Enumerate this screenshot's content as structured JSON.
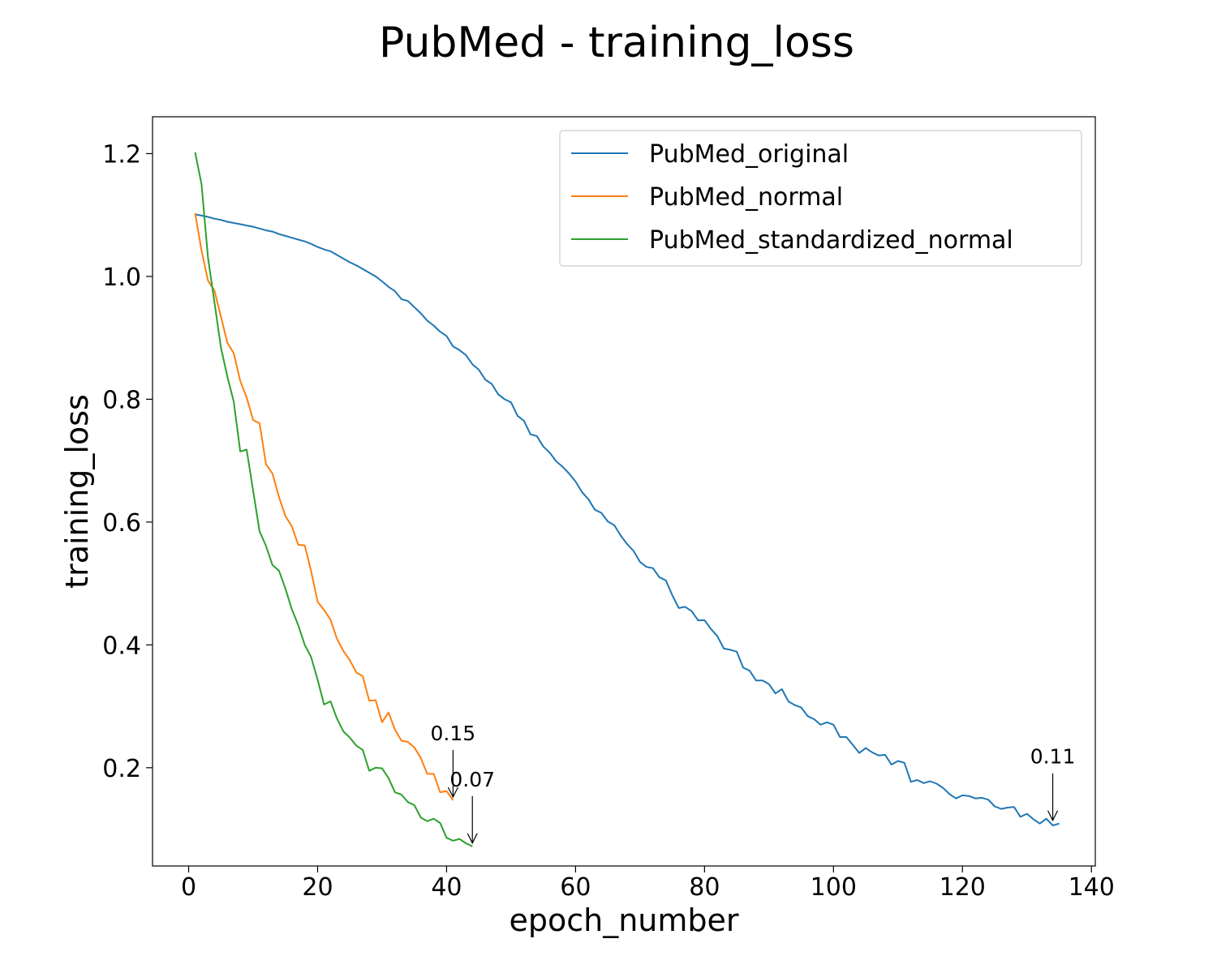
{
  "chart_data": {
    "type": "line",
    "title": "PubMed - training_loss",
    "xlabel": "epoch_number",
    "ylabel": "training_loss",
    "xlim": [
      -5.6,
      140.6
    ],
    "ylim": [
      0.04,
      1.26
    ],
    "xticks": [
      0,
      20,
      40,
      60,
      80,
      100,
      120,
      140
    ],
    "yticks": [
      0.2,
      0.4,
      0.6,
      0.8,
      1.0,
      1.2
    ],
    "xtick_labels": [
      "0",
      "20",
      "40",
      "60",
      "80",
      "100",
      "120",
      "140"
    ],
    "ytick_labels": [
      "0.2",
      "0.4",
      "0.6",
      "0.8",
      "1.0",
      "1.2"
    ],
    "grid": false,
    "legend_position": "top-right",
    "series": [
      {
        "name": "PubMed_original",
        "color": "#1f77b4",
        "x_start": 1,
        "values": [
          1.101,
          1.099,
          1.097,
          1.094,
          1.092,
          1.089,
          1.087,
          1.085,
          1.083,
          1.081,
          1.078,
          1.075,
          1.073,
          1.069,
          1.066,
          1.063,
          1.06,
          1.057,
          1.053,
          1.048,
          1.044,
          1.041,
          1.035,
          1.029,
          1.023,
          1.018,
          1.012,
          1.006,
          1.0,
          0.992,
          0.983,
          0.976,
          0.963,
          0.96,
          0.95,
          0.94,
          0.928,
          0.92,
          0.91,
          0.903,
          0.886,
          0.88,
          0.872,
          0.857,
          0.848,
          0.832,
          0.825,
          0.808,
          0.8,
          0.795,
          0.773,
          0.765,
          0.743,
          0.74,
          0.723,
          0.713,
          0.699,
          0.69,
          0.679,
          0.666,
          0.649,
          0.637,
          0.62,
          0.615,
          0.601,
          0.595,
          0.578,
          0.564,
          0.553,
          0.535,
          0.527,
          0.525,
          0.51,
          0.505,
          0.481,
          0.46,
          0.462,
          0.455,
          0.44,
          0.44,
          0.426,
          0.414,
          0.394,
          0.392,
          0.389,
          0.363,
          0.358,
          0.342,
          0.342,
          0.336,
          0.321,
          0.328,
          0.308,
          0.302,
          0.298,
          0.284,
          0.279,
          0.27,
          0.274,
          0.27,
          0.25,
          0.25,
          0.237,
          0.224,
          0.232,
          0.225,
          0.22,
          0.221,
          0.205,
          0.211,
          0.208,
          0.177,
          0.18,
          0.175,
          0.178,
          0.174,
          0.167,
          0.157,
          0.15,
          0.155,
          0.154,
          0.15,
          0.151,
          0.148,
          0.137,
          0.133,
          0.135,
          0.136,
          0.12,
          0.125,
          0.116,
          0.109,
          0.117,
          0.106,
          0.109
        ]
      },
      {
        "name": "PubMed_normal",
        "color": "#ff7f0e",
        "x_start": 1,
        "values": [
          1.103,
          1.042,
          0.993,
          0.977,
          0.935,
          0.892,
          0.875,
          0.83,
          0.803,
          0.766,
          0.761,
          0.694,
          0.679,
          0.641,
          0.61,
          0.593,
          0.563,
          0.562,
          0.52,
          0.47,
          0.457,
          0.441,
          0.41,
          0.39,
          0.375,
          0.355,
          0.349,
          0.309,
          0.31,
          0.274,
          0.29,
          0.262,
          0.244,
          0.242,
          0.233,
          0.216,
          0.19,
          0.19,
          0.16,
          0.162,
          0.147
        ]
      },
      {
        "name": "PubMed_standardized_normal",
        "color": "#2ca02c",
        "x_start": 1,
        "values": [
          1.202,
          1.15,
          1.03,
          0.958,
          0.885,
          0.837,
          0.796,
          0.715,
          0.718,
          0.651,
          0.585,
          0.561,
          0.53,
          0.521,
          0.492,
          0.458,
          0.432,
          0.4,
          0.38,
          0.343,
          0.303,
          0.308,
          0.28,
          0.259,
          0.249,
          0.236,
          0.229,
          0.195,
          0.2,
          0.199,
          0.183,
          0.16,
          0.156,
          0.144,
          0.139,
          0.119,
          0.113,
          0.117,
          0.11,
          0.086,
          0.081,
          0.084,
          0.077,
          0.072
        ]
      }
    ],
    "annotations": [
      {
        "text": "0.15",
        "x": 41,
        "y": 0.147,
        "series": "PubMed_normal"
      },
      {
        "text": "0.07",
        "x": 44,
        "y": 0.072,
        "series": "PubMed_standardized_normal"
      },
      {
        "text": "0.11",
        "x": 134,
        "y": 0.109,
        "series": "PubMed_original"
      }
    ]
  }
}
